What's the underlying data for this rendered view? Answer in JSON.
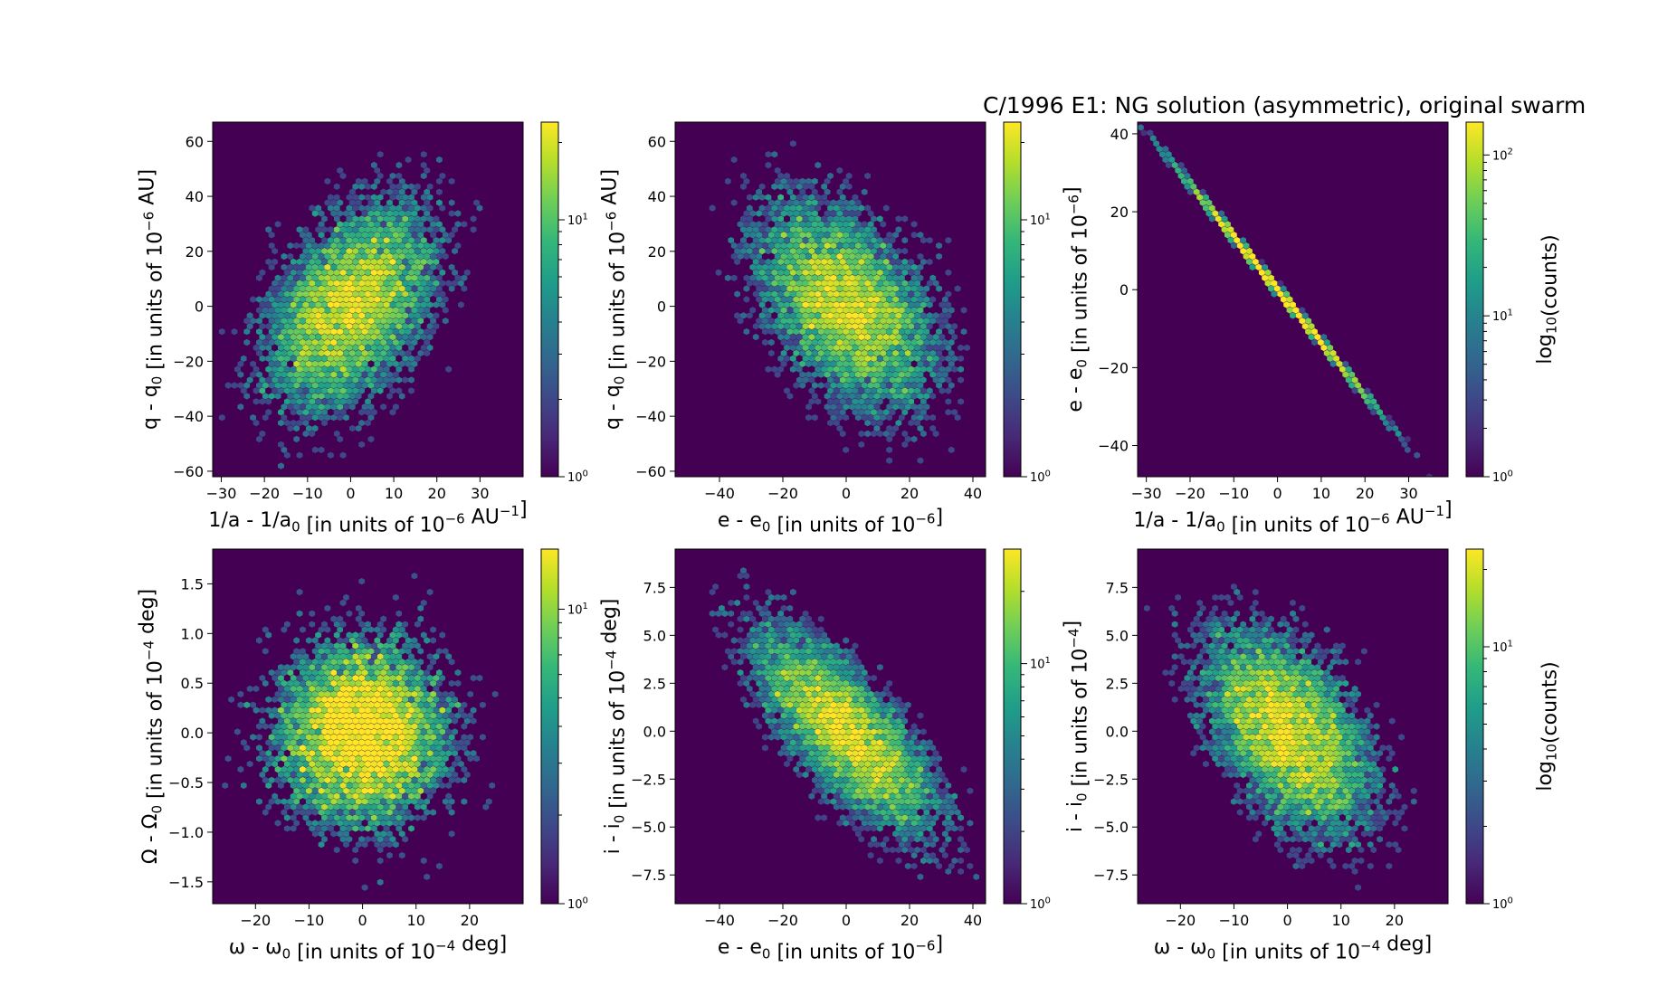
{
  "figure_title": "C/1996 E1:  NG solution (asymmetric), original swarm",
  "colormap": {
    "name": "viridis",
    "stops": [
      "#440154",
      "#482878",
      "#3e4989",
      "#31688e",
      "#26828e",
      "#1f9e89",
      "#35b779",
      "#6ece58",
      "#b5de2b",
      "#fde725"
    ]
  },
  "chart_data": [
    {
      "type": "heatmap",
      "panel": "p1",
      "xlabel": "1/a - 1/a₀ [in units of 10⁻⁶ AU⁻¹]",
      "ylabel": "q - q₀ [in units of 10⁻⁶ AU]",
      "xlim": [
        -32,
        40
      ],
      "ylim": [
        -62,
        67
      ],
      "xticks": [
        -30,
        -20,
        -10,
        0,
        10,
        20,
        30
      ],
      "yticks": [
        -60,
        -40,
        -20,
        0,
        20,
        40,
        60
      ],
      "distribution": {
        "mean": [
          0,
          0
        ],
        "std": [
          10.5,
          20
        ],
        "corr": 0.45,
        "n": 9000
      },
      "colorbar": {
        "scale": "log",
        "vmin": 1,
        "vmax": 24,
        "ticks": [
          {
            "v": 1,
            "label": "10⁰"
          },
          {
            "v": 10,
            "label": "10¹"
          }
        ],
        "label": ""
      }
    },
    {
      "type": "heatmap",
      "panel": "p2",
      "xlabel": "e - e₀ [in units of 10⁻⁶]",
      "ylabel": "q - q₀ [in units of 10⁻⁶ AU]",
      "xlim": [
        -54,
        44
      ],
      "ylim": [
        -62,
        67
      ],
      "xticks": [
        -40,
        -20,
        0,
        20,
        40
      ],
      "yticks": [
        -60,
        -40,
        -20,
        0,
        20,
        40,
        60
      ],
      "distribution": {
        "mean": [
          0,
          0
        ],
        "std": [
          15,
          20
        ],
        "corr": -0.45,
        "n": 9000
      },
      "colorbar": {
        "scale": "log",
        "vmin": 1,
        "vmax": 24,
        "ticks": [
          {
            "v": 1,
            "label": "10⁰"
          },
          {
            "v": 10,
            "label": "10¹"
          }
        ],
        "label": ""
      }
    },
    {
      "type": "heatmap",
      "panel": "p3",
      "xlabel": "1/a - 1/a₀ [in units of 10⁻⁶ AU⁻¹]",
      "ylabel": "e - e₀ [in units of 10⁻⁶]",
      "xlim": [
        -32,
        39
      ],
      "ylim": [
        -48,
        43
      ],
      "xticks": [
        -30,
        -20,
        -10,
        0,
        10,
        20,
        30
      ],
      "yticks": [
        -40,
        -20,
        0,
        20,
        40
      ],
      "distribution": {
        "mean": [
          0,
          0
        ],
        "std": [
          10.5,
          14.2
        ],
        "corr": -0.9995,
        "n": 9000
      },
      "colorbar": {
        "scale": "log",
        "vmin": 1,
        "vmax": 160,
        "ticks": [
          {
            "v": 1,
            "label": "10⁰"
          },
          {
            "v": 10,
            "label": "10¹"
          },
          {
            "v": 100,
            "label": "10²"
          }
        ],
        "label": "log₁₀(counts)"
      }
    },
    {
      "type": "heatmap",
      "panel": "p4",
      "xlabel": "ω - ω₀ [in units of 10⁻⁴ deg]",
      "ylabel": "Ω - Ω₀ [in units of 10⁻⁴ deg]",
      "xlim": [
        -28,
        30
      ],
      "ylim": [
        -1.72,
        1.85
      ],
      "xticks": [
        -20,
        -10,
        0,
        10,
        20
      ],
      "yticks": [
        -1.5,
        -1.0,
        -0.5,
        0.0,
        0.5,
        1.0,
        1.5
      ],
      "distribution": {
        "mean": [
          0,
          0
        ],
        "std": [
          8.5,
          0.5
        ],
        "corr": 0.0,
        "n": 9000
      },
      "colorbar": {
        "scale": "log",
        "vmin": 1,
        "vmax": 16,
        "ticks": [
          {
            "v": 1,
            "label": "10⁰"
          },
          {
            "v": 10,
            "label": "10¹"
          }
        ],
        "label": ""
      }
    },
    {
      "type": "heatmap",
      "panel": "p5",
      "xlabel": "e - e₀ [in units of 10⁻⁶]",
      "ylabel": "i - i₀ [in units of 10⁻⁴ deg]",
      "xlim": [
        -54,
        44
      ],
      "ylim": [
        -9.0,
        9.5
      ],
      "xticks": [
        -40,
        -20,
        0,
        20,
        40
      ],
      "yticks": [
        -7.5,
        -5.0,
        -2.5,
        0.0,
        2.5,
        5.0,
        7.5
      ],
      "distribution": {
        "mean": [
          0,
          0
        ],
        "std": [
          15,
          2.8
        ],
        "corr": -0.75,
        "n": 9000
      },
      "colorbar": {
        "scale": "log",
        "vmin": 1,
        "vmax": 30,
        "ticks": [
          {
            "v": 1,
            "label": "10⁰"
          },
          {
            "v": 10,
            "label": "10¹"
          }
        ],
        "label": ""
      }
    },
    {
      "type": "heatmap",
      "panel": "p6",
      "xlabel": "ω - ω₀ [in units of 10⁻⁴ deg]",
      "ylabel": "i - i₀ [in units of 10⁻⁴]",
      "xlim": [
        -28,
        30
      ],
      "ylim": [
        -9.0,
        9.5
      ],
      "xticks": [
        -20,
        -10,
        0,
        10,
        20
      ],
      "yticks": [
        -7.5,
        -5.0,
        -2.5,
        0.0,
        2.5,
        5.0,
        7.5
      ],
      "distribution": {
        "mean": [
          0,
          0
        ],
        "std": [
          8.5,
          2.8
        ],
        "corr": -0.5,
        "n": 9000
      },
      "colorbar": {
        "scale": "log",
        "vmin": 1,
        "vmax": 24,
        "ticks": [
          {
            "v": 1,
            "label": "10⁰"
          },
          {
            "v": 10,
            "label": "10¹"
          }
        ],
        "label": "log₁₀(counts)"
      }
    }
  ]
}
